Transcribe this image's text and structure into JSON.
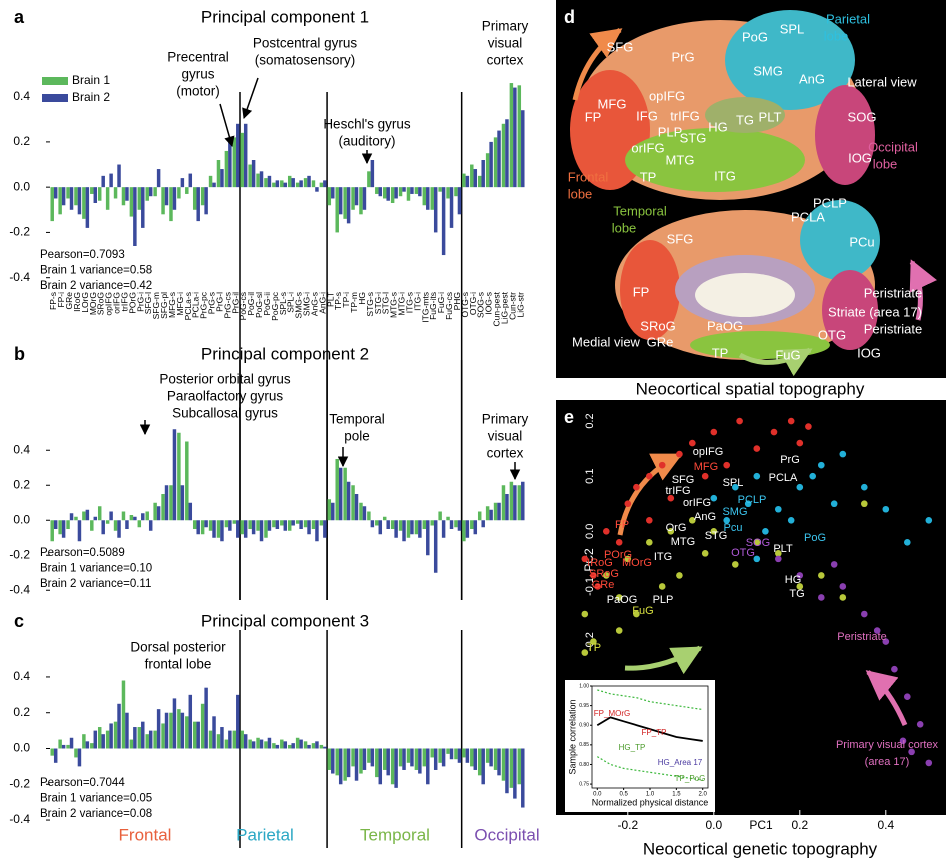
{
  "chart_data": [
    {
      "type": "bar",
      "panel": "a",
      "title": "Principal component 1",
      "categories": [
        "FP-s",
        "FP-i",
        "GRe",
        "IRoG",
        "LOrG",
        "MOrG",
        "SRoG",
        "opIFG",
        "orIFG",
        "trIFG",
        "POrG",
        "PrG-i",
        "SFG-l",
        "SFG-m",
        "SFG-pl",
        "MFG-s",
        "MFG-i",
        "PCLa-s",
        "PCLa-i",
        "PrG-pc",
        "PrG-s",
        "PrG-l",
        "PrG-cs",
        "PrG-il",
        "PoG-cs",
        "PoG-il",
        "PoG-sl",
        "PoG-ii",
        "PoG-pc",
        "SPL-s",
        "SPL-i",
        "SMG-s",
        "SMG-i",
        "AnG-s",
        "AnG-i",
        "PLT",
        "TP-s",
        "TP-i",
        "TP-m",
        "HG",
        "STG-s",
        "STG-i",
        "STG-l",
        "MTG-s",
        "MTG-i",
        "ITG-s",
        "ITG-i",
        "ITG-mts",
        "FuG-its",
        "FuG-i",
        "FuG-cs",
        "PHG",
        "OTG-s",
        "OTG-i",
        "SOG-s",
        "IOG-s",
        "Cun-pest",
        "LiG-pest",
        "Cun-str",
        "LiG-str"
      ],
      "series": [
        {
          "name": "Brain 1",
          "color": "#5cb85c",
          "values": [
            -0.15,
            -0.12,
            -0.05,
            -0.08,
            -0.14,
            -0.03,
            -0.06,
            -0.1,
            -0.05,
            -0.08,
            -0.13,
            -0.1,
            -0.06,
            -0.04,
            -0.12,
            -0.15,
            -0.05,
            -0.03,
            -0.1,
            -0.08,
            0.05,
            0.12,
            0.16,
            0.22,
            0.24,
            0.1,
            0.06,
            0.04,
            0.02,
            0.03,
            0.05,
            0.02,
            0.04,
            0.03,
            0.02,
            -0.08,
            -0.2,
            -0.14,
            -0.1,
            -0.12,
            0.07,
            -0.03,
            -0.05,
            -0.07,
            -0.04,
            -0.06,
            -0.03,
            -0.08,
            -0.1,
            -0.02,
            -0.05,
            -0.04,
            0.06,
            0.1,
            0.05,
            0.15,
            0.22,
            0.28,
            0.46,
            0.45
          ]
        },
        {
          "name": "Brain 2",
          "color": "#3a4a9c",
          "values": [
            -0.05,
            -0.08,
            -0.1,
            -0.12,
            -0.18,
            -0.07,
            0.05,
            0.06,
            0.1,
            -0.06,
            -0.26,
            -0.18,
            -0.04,
            0.08,
            -0.08,
            -0.1,
            0.04,
            0.06,
            -0.15,
            -0.12,
            0.02,
            0.08,
            0.2,
            0.28,
            0.28,
            0.12,
            0.07,
            0.05,
            0.03,
            0.02,
            0.04,
            0.03,
            0.05,
            -0.02,
            0.03,
            -0.05,
            -0.12,
            -0.16,
            -0.08,
            -0.1,
            0.12,
            -0.04,
            -0.06,
            -0.05,
            -0.02,
            -0.03,
            -0.04,
            -0.1,
            -0.2,
            -0.3,
            -0.18,
            -0.12,
            0.05,
            0.08,
            0.12,
            0.2,
            0.25,
            0.3,
            0.44,
            0.34
          ]
        }
      ],
      "ylim": [
        -0.45,
        0.5
      ],
      "yticks": [
        -0.4,
        -0.2,
        {
          "value": 0,
          "label": "0.0"
        },
        0.2,
        0.4
      ],
      "stats": [
        "Pearson=0.7093",
        "Brain 1 variance=0.58",
        "Brain 2 variance=0.42"
      ],
      "annotations": [
        {
          "lines": [
            "Precentral",
            "gyrus",
            "(motor)"
          ]
        },
        {
          "lines": [
            "Postcentral gyrus",
            "(somatosensory)"
          ]
        },
        {
          "lines": [
            "Heschl's gyrus",
            "(auditory)"
          ]
        },
        {
          "lines": [
            "Primary",
            "visual",
            "cortex"
          ]
        }
      ]
    },
    {
      "type": "bar",
      "panel": "b",
      "title": "Principal component 2",
      "series": [
        {
          "color": "#5cb85c",
          "values": [
            -0.12,
            -0.08,
            -0.05,
            0.02,
            0.05,
            -0.06,
            0.08,
            -0.02,
            -0.06,
            0.05,
            0.03,
            -0.04,
            0.05,
            0.1,
            0.15,
            0.2,
            0.5,
            0.45,
            -0.05,
            -0.08,
            -0.06,
            -0.1,
            -0.04,
            -0.02,
            -0.08,
            -0.05,
            -0.06,
            -0.1,
            -0.04,
            -0.03,
            -0.06,
            -0.02,
            -0.04,
            -0.05,
            -0.03,
            0.12,
            0.35,
            0.3,
            0.2,
            0.1,
            0.05,
            -0.03,
            0.02,
            -0.05,
            -0.06,
            -0.1,
            -0.08,
            -0.05,
            -0.03,
            0.05,
            0.02,
            -0.04,
            -0.12,
            -0.05,
            0.05,
            0.08,
            0.1,
            0.2,
            0.22,
            0.2
          ]
        },
        {
          "color": "#3a4a9c",
          "values": [
            -0.05,
            -0.1,
            0.04,
            -0.12,
            0.06,
            0.02,
            -0.08,
            0.05,
            -0.1,
            -0.05,
            0.02,
            0.04,
            -0.06,
            0.08,
            0.2,
            0.52,
            0.2,
            0.1,
            -0.08,
            -0.04,
            -0.1,
            -0.12,
            -0.06,
            -0.1,
            -0.1,
            -0.08,
            -0.12,
            -0.06,
            -0.05,
            -0.06,
            -0.03,
            -0.05,
            -0.08,
            -0.12,
            -0.1,
            0.1,
            0.3,
            0.22,
            0.15,
            0.08,
            -0.04,
            -0.08,
            -0.05,
            -0.1,
            -0.12,
            -0.08,
            -0.1,
            -0.2,
            -0.3,
            -0.1,
            -0.05,
            -0.06,
            -0.1,
            -0.08,
            -0.04,
            0.06,
            0.1,
            0.15,
            0.2,
            0.22
          ]
        }
      ],
      "ylim": [
        -0.45,
        0.55
      ],
      "yticks": [
        -0.4,
        -0.2,
        {
          "value": 0,
          "label": "0.0"
        },
        0.2,
        0.4
      ],
      "stats": [
        "Pearson=0.5089",
        "Brain 1 variance=0.10",
        "Brain 2 variance=0.11"
      ],
      "annotations": [
        {
          "lines": [
            "Posterior orbital gyrus",
            "Paraolfactory gyrus",
            "Subcallosal gyrus"
          ]
        },
        {
          "lines": [
            "Temporal",
            "pole"
          ]
        },
        {
          "lines": [
            "Primary",
            "visual",
            "cortex"
          ]
        }
      ]
    },
    {
      "type": "bar",
      "panel": "c",
      "title": "Principal component 3",
      "series": [
        {
          "color": "#5cb85c",
          "values": [
            -0.04,
            0.05,
            0.02,
            -0.05,
            0.08,
            0.03,
            0.12,
            0.1,
            0.15,
            0.38,
            0.05,
            0.12,
            0.08,
            0.1,
            0.14,
            0.2,
            0.22,
            0.18,
            0.15,
            0.25,
            0.1,
            0.08,
            0.05,
            0.1,
            0.1,
            0.05,
            0.06,
            0.04,
            0.03,
            0.05,
            0.02,
            0.06,
            0.04,
            0.03,
            0.02,
            -0.12,
            -0.15,
            -0.18,
            -0.1,
            -0.14,
            -0.08,
            -0.16,
            -0.12,
            -0.2,
            -0.1,
            -0.08,
            -0.12,
            -0.1,
            -0.05,
            -0.08,
            -0.03,
            -0.06,
            -0.05,
            -0.1,
            -0.15,
            -0.08,
            -0.12,
            -0.18,
            -0.22,
            -0.2
          ]
        },
        {
          "color": "#3a4a9c",
          "values": [
            -0.08,
            0.02,
            0.06,
            -0.1,
            0.04,
            0.1,
            0.08,
            0.14,
            0.25,
            0.2,
            0.12,
            0.15,
            0.1,
            0.22,
            0.2,
            0.28,
            0.2,
            0.3,
            0.15,
            0.34,
            0.18,
            0.12,
            0.1,
            0.3,
            0.08,
            0.04,
            0.05,
            0.06,
            0.02,
            0.04,
            0.03,
            0.05,
            0.02,
            0.04,
            0.01,
            -0.14,
            -0.2,
            -0.16,
            -0.18,
            -0.12,
            -0.1,
            -0.2,
            -0.15,
            -0.22,
            -0.12,
            -0.1,
            -0.14,
            -0.2,
            -0.12,
            -0.1,
            -0.06,
            -0.08,
            -0.08,
            -0.12,
            -0.2,
            -0.1,
            -0.15,
            -0.25,
            -0.28,
            -0.33
          ]
        }
      ],
      "ylim": [
        -0.45,
        0.45
      ],
      "yticks": [
        -0.4,
        -0.2,
        {
          "value": 0,
          "label": "0.0"
        },
        0.2,
        0.4
      ],
      "stats": [
        "Pearson=0.7044",
        "Brain 1 variance=0.05",
        "Brain 2 variance=0.08"
      ],
      "annotations": [
        {
          "lines": [
            "Dorsal posterior",
            "frontal lobe"
          ]
        }
      ],
      "regions": [
        {
          "name": "Frontal",
          "color": "#e8603c"
        },
        {
          "name": "Parietal",
          "color": "#2aa7c4"
        },
        {
          "name": "Temporal",
          "color": "#7ab648"
        },
        {
          "name": "Occipital",
          "color": "#7b4fb0"
        }
      ]
    },
    {
      "type": "scatter",
      "panel": "e",
      "caption": "Neocortical genetic topography",
      "xlabel": "PC1",
      "ylabel": "PC2",
      "xlim": [
        -0.36,
        0.54
      ],
      "ylim": [
        -0.5,
        0.22
      ],
      "xticks": [
        -0.2,
        {
          "value": 0,
          "label": "0.0"
        },
        0.2,
        0.4
      ],
      "yticks": [
        -0.4,
        -0.3,
        -0.2,
        -0.1,
        {
          "value": 0,
          "label": "0.0"
        },
        0.1,
        0.2
      ],
      "series": [
        {
          "color": "#e0302a",
          "x": [
            -0.3,
            -0.28,
            -0.25,
            -0.22,
            -0.2,
            -0.18,
            -0.15,
            -0.12,
            -0.1,
            -0.08,
            -0.05,
            -0.02,
            0.0,
            0.03,
            0.06,
            0.1,
            0.14,
            0.18,
            0.2,
            0.22,
            -0.27,
            -0.15
          ],
          "values": [
            -0.05,
            -0.08,
            0.0,
            -0.02,
            0.05,
            0.08,
            0.1,
            0.12,
            0.06,
            0.14,
            0.16,
            0.1,
            0.18,
            0.12,
            0.2,
            0.15,
            0.18,
            0.2,
            0.16,
            0.19,
            -0.1,
            0.02
          ]
        },
        {
          "color": "#22b0d8",
          "x": [
            0.0,
            0.03,
            0.05,
            0.08,
            0.1,
            0.12,
            0.15,
            0.18,
            0.2,
            0.23,
            0.25,
            0.28,
            0.3,
            0.35,
            0.4,
            0.45,
            0.5,
            0.1
          ],
          "values": [
            0.06,
            0.02,
            0.08,
            0.05,
            0.1,
            0.0,
            0.04,
            0.02,
            0.08,
            0.1,
            0.12,
            0.05,
            0.14,
            0.08,
            0.04,
            -0.02,
            0.02,
            -0.05
          ]
        },
        {
          "color": "#b8c83a",
          "x": [
            -0.3,
            -0.28,
            -0.25,
            -0.22,
            -0.2,
            -0.18,
            -0.15,
            -0.12,
            -0.1,
            -0.08,
            -0.05,
            -0.02,
            0.0,
            0.05,
            0.1,
            0.15,
            0.2,
            0.25,
            0.3,
            0.35,
            -0.22,
            -0.3
          ],
          "values": [
            -0.15,
            -0.2,
            -0.08,
            -0.12,
            -0.05,
            -0.15,
            -0.02,
            -0.1,
            0.0,
            -0.08,
            0.02,
            -0.04,
            0.0,
            -0.06,
            -0.02,
            -0.04,
            -0.1,
            -0.08,
            -0.12,
            0.05,
            -0.18,
            -0.22
          ]
        },
        {
          "color": "#8a3fb0",
          "x": [
            0.15,
            0.2,
            0.25,
            0.3,
            0.35,
            0.4,
            0.42,
            0.45,
            0.48,
            0.5,
            0.38,
            0.28,
            0.44,
            0.46
          ],
          "values": [
            -0.05,
            -0.08,
            -0.12,
            -0.1,
            -0.15,
            -0.2,
            -0.25,
            -0.3,
            -0.35,
            -0.42,
            -0.18,
            -0.06,
            -0.38,
            -0.4
          ]
        }
      ],
      "point_labels": [
        {
          "text": "opIFG",
          "color": "#ffffff"
        },
        {
          "text": "MFG",
          "color": "#ff4a3a"
        },
        {
          "text": "PrG",
          "color": "#ffffff"
        },
        {
          "text": "PCLA",
          "color": "#ffffff"
        },
        {
          "text": "SFG",
          "color": "#ffffff"
        },
        {
          "text": "SPL",
          "color": "#ffffff"
        },
        {
          "text": "trIFG",
          "color": "#ffffff"
        },
        {
          "text": "orIFG",
          "color": "#ffffff"
        },
        {
          "text": "PCLP",
          "color": "#3cc6f0"
        },
        {
          "text": "SMG",
          "color": "#3cc6f0"
        },
        {
          "text": "AnG",
          "color": "#ffffff"
        },
        {
          "text": "FP",
          "color": "#ff4a3a"
        },
        {
          "text": "OrG",
          "color": "#ffffff"
        },
        {
          "text": "Pcu",
          "color": "#3cc6f0"
        },
        {
          "text": "STG",
          "color": "#ffffff"
        },
        {
          "text": "PoG",
          "color": "#3cc6f0"
        },
        {
          "text": "MTG",
          "color": "#ffffff"
        },
        {
          "text": "SOG",
          "color": "#b05ad8"
        },
        {
          "text": "PLT",
          "color": "#ffffff"
        },
        {
          "text": "POrG",
          "color": "#ff4a3a"
        },
        {
          "text": "OTG",
          "color": "#b05ad8"
        },
        {
          "text": "ITG",
          "color": "#ffffff"
        },
        {
          "text": "MOrG",
          "color": "#ff4a3a"
        },
        {
          "text": "IRoG",
          "color": "#ff4a3a"
        },
        {
          "text": "SRoG",
          "color": "#ff4a3a"
        },
        {
          "text": "GRe",
          "color": "#ff4a3a"
        },
        {
          "text": "HG",
          "color": "#ffffff"
        },
        {
          "text": "TG",
          "color": "#ffffff"
        },
        {
          "text": "PaOG",
          "color": "#ffffff"
        },
        {
          "text": "PLP",
          "color": "#ffffff"
        },
        {
          "text": "FuG",
          "color": "#d8e040"
        },
        {
          "text": "TP",
          "color": "#d8e040"
        }
      ],
      "annotations": [
        "Peristriate",
        "Primary visual cortex",
        "(area 17)"
      ]
    },
    {
      "type": "line",
      "xlabel": "Normalized physical distance",
      "ylabel": "Sample correlation",
      "x": [
        0,
        0.25,
        0.5,
        0.75,
        1,
        1.25,
        1.5,
        1.75,
        2
      ],
      "xlim": [
        -0.1,
        2.1
      ],
      "ylim": [
        0.74,
        1.0
      ],
      "xticks": [
        {
          "value": 0,
          "label": "0.0"
        },
        0.5,
        {
          "value": 1,
          "label": "1.0"
        },
        1.5,
        {
          "value": 2,
          "label": "2.0"
        }
      ],
      "yticks": [
        0.75,
        {
          "value": 0.8,
          "label": "0.80"
        },
        0.85,
        {
          "value": 0.9,
          "label": "0.90"
        },
        0.95,
        {
          "value": 1,
          "label": "1.00"
        }
      ],
      "series": [
        {
          "color": "#000000",
          "values": [
            0.9,
            0.92,
            0.91,
            0.9,
            0.89,
            0.88,
            0.87,
            0.865,
            0.86
          ]
        },
        {
          "color": "#3cb83c",
          "values": [
            0.99,
            0.98,
            0.975,
            0.97,
            0.96,
            0.955,
            0.95,
            0.945,
            0.94
          ]
        },
        {
          "color": "#3cb83c",
          "values": [
            0.82,
            0.8,
            0.79,
            0.785,
            0.78,
            0.775,
            0.77,
            0.765,
            0.76
          ]
        }
      ],
      "annotations": [
        "FP_MOrG",
        "FP_TP",
        "HG_TP",
        "HG_Area 17",
        "TP_PoG"
      ]
    }
  ],
  "panel_d": {
    "panel": "d",
    "caption": "Neocortical spatial topography",
    "labels": [
      "SFG",
      "PrG",
      "PoG",
      "SPL",
      "Parietal",
      "lobe",
      "MFG",
      "SMG",
      "AnG",
      "Lateral view",
      "FP",
      "opIFG",
      "IFG",
      "trIFG",
      "PLP",
      "HG",
      "TG",
      "PLT",
      "SOG",
      "orIFG",
      "STG",
      "MTG",
      "ITG",
      "IOG",
      "Occipital",
      "lobe",
      "Frontal",
      "lobe",
      "TP",
      "Temporal",
      "lobe",
      "PCLP",
      "PCLA",
      "PCu",
      "SFG",
      "FP",
      "Peristriate",
      "Striate (area 17)",
      "Peristriate",
      "SRoG",
      "PaOG",
      "GRe",
      "TP",
      "FuG",
      "OTG",
      "IOG",
      "Medial view"
    ]
  }
}
